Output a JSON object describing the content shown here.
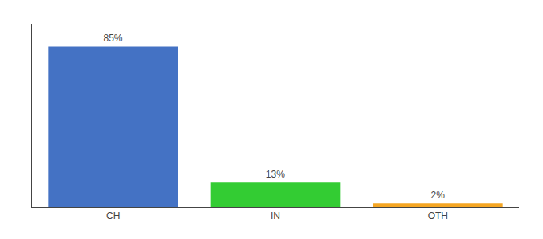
{
  "chart_data": {
    "type": "bar",
    "categories": [
      "CH",
      "IN",
      "OTH"
    ],
    "values": [
      85,
      13,
      2
    ],
    "value_labels": [
      "85%",
      "13%",
      "2%"
    ],
    "colors": [
      "#4472c4",
      "#33cc33",
      "#f5a623"
    ],
    "ylim": [
      0,
      97
    ],
    "data_labels": true,
    "tick_labels": "x",
    "grid": false
  }
}
